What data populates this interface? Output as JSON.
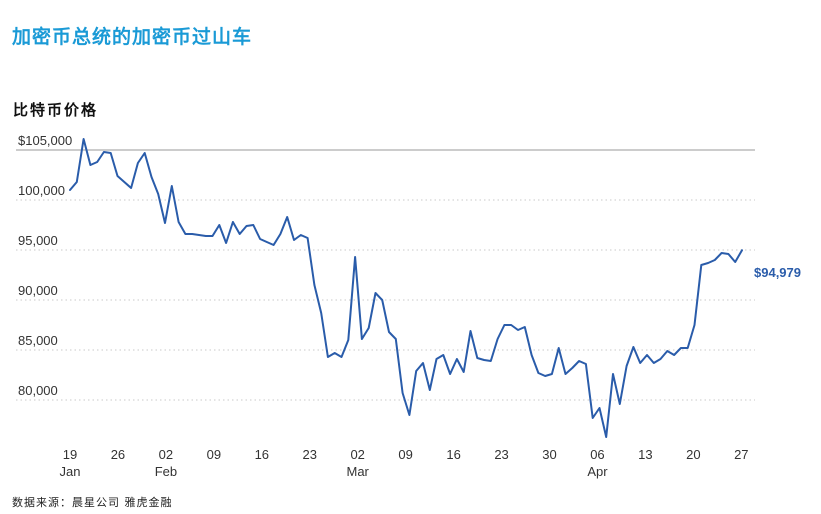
{
  "headline": "加密币总统的加密币过山车",
  "chart_title": "比特币价格",
  "source": "数据来源：晨星公司  雅虎金融",
  "chart_data": {
    "type": "line",
    "title": "比特币价格",
    "xlabel": "",
    "ylabel": "",
    "color": "#2a5caa",
    "ylim": [
      76000,
      107000
    ],
    "y_ticks": [
      {
        "value": 105000,
        "label": "$105,000",
        "style": "solid"
      },
      {
        "value": 100000,
        "label": "100,000",
        "style": "dotted"
      },
      {
        "value": 95000,
        "label": "95,000",
        "style": "dotted"
      },
      {
        "value": 90000,
        "label": "90,000",
        "style": "dotted"
      },
      {
        "value": 85000,
        "label": "85,000",
        "style": "dotted"
      },
      {
        "value": 80000,
        "label": "80,000",
        "style": "dotted"
      }
    ],
    "x_ticks": [
      {
        "day": "19",
        "month": "Jan"
      },
      {
        "day": "26",
        "month": ""
      },
      {
        "day": "02",
        "month": "Feb"
      },
      {
        "day": "09",
        "month": ""
      },
      {
        "day": "16",
        "month": ""
      },
      {
        "day": "23",
        "month": ""
      },
      {
        "day": "02",
        "month": "Mar"
      },
      {
        "day": "09",
        "month": ""
      },
      {
        "day": "16",
        "month": ""
      },
      {
        "day": "23",
        "month": ""
      },
      {
        "day": "30",
        "month": ""
      },
      {
        "day": "06",
        "month": "Apr"
      },
      {
        "day": "13",
        "month": ""
      },
      {
        "day": "20",
        "month": ""
      },
      {
        "day": "27",
        "month": ""
      }
    ],
    "end_label": "$94,979",
    "series": [
      {
        "values": [
          101000,
          101800,
          106100,
          103500,
          103800,
          104800,
          104700,
          102400,
          101800,
          101200,
          103700,
          104700,
          102300,
          100600,
          97700,
          101400,
          97800,
          96600,
          96600,
          96500,
          96400,
          96400,
          97500,
          95700,
          97800,
          96600,
          97400,
          97500,
          96100,
          95800,
          95500,
          96600,
          98300,
          96000,
          96500,
          96200,
          91500,
          88700,
          84300,
          84700,
          84300,
          86000,
          94300,
          86100,
          87200,
          90700,
          90000,
          86800,
          86100,
          80700,
          78500,
          82900,
          83700,
          81000,
          84100,
          84500,
          82600,
          84100,
          82800,
          86900,
          84200,
          84000,
          83900,
          86100,
          87500,
          87500,
          87000,
          87300,
          84500,
          82700,
          82400,
          82600,
          85200,
          82600,
          83200,
          83900,
          83600,
          78200,
          79200,
          76300,
          82600,
          79600,
          83400,
          85300,
          83700,
          84500,
          83700,
          84100,
          84900,
          84500,
          85200,
          85200,
          87500,
          93500,
          93700,
          94000,
          94700,
          94600,
          93800,
          94979
        ]
      }
    ]
  }
}
